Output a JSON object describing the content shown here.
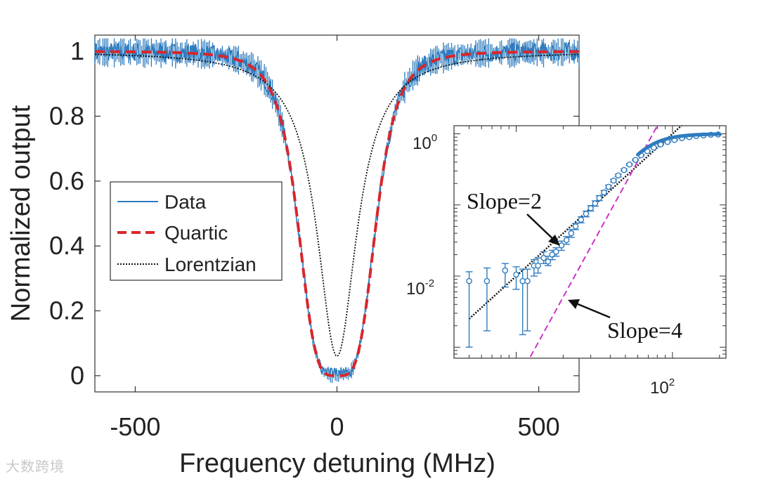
{
  "chart_data": [
    {
      "type": "line",
      "role": "main",
      "xlabel": "Frequency detuning (MHz)",
      "ylabel": "Normalized output",
      "xlim": [
        -600,
        600
      ],
      "ylim": [
        -0.05,
        1.05
      ],
      "xticks": [
        -500,
        0,
        500
      ],
      "xtick_labels": [
        "-500",
        "0",
        "500"
      ],
      "yticks": [
        0,
        0.2,
        0.4,
        0.6,
        0.8,
        1
      ],
      "ytick_labels": [
        "0",
        "0.2",
        "0.4",
        "0.6",
        "0.8",
        "1"
      ],
      "grid": false,
      "legend_position": "center-left",
      "series": [
        {
          "name": "Data",
          "style": "solid-noisy",
          "color": "#2f7cbf",
          "model": "quartic",
          "center_mhz": 0,
          "half_width_mhz": 100,
          "noise_amplitude": 0.03
        },
        {
          "name": "Quartic",
          "style": "dashed",
          "color": "#d9262b",
          "function": "x^4/(x^4 + w^4)",
          "w_mhz": 100
        },
        {
          "name": "Lorentzian",
          "style": "dotted",
          "color": "#111111",
          "function": "x^2/(x^2 + g^2)",
          "g_mhz": 60,
          "floor": 0.06
        }
      ]
    },
    {
      "type": "scatter",
      "role": "inset",
      "scale": "log-log",
      "xlim": [
        4,
        220
      ],
      "ylim": [
        0.0007,
        1.3
      ],
      "xtick_labels": [
        {
          "base": "10",
          "exp": "2"
        }
      ],
      "ytick_labels": [
        {
          "base": "10",
          "exp": "0"
        },
        {
          "base": "10",
          "exp": "-2"
        }
      ],
      "points": [
        {
          "x": 5.0,
          "y": 0.0085,
          "err_low": 0.0075,
          "err_high": 0.003
        },
        {
          "x": 6.5,
          "y": 0.0085,
          "err_low": 0.0068,
          "err_high": 0.0045
        },
        {
          "x": 8.5,
          "y": 0.012,
          "err_low": 0.005,
          "err_high": 0.003
        },
        {
          "x": 10.0,
          "y": 0.0105,
          "err_low": 0.004,
          "err_high": 0.003
        },
        {
          "x": 11.0,
          "y": 0.0085,
          "err_low": 0.007,
          "err_high": 0.004
        },
        {
          "x": 11.8,
          "y": 0.0085,
          "err_low": 0.0068,
          "err_high": 0.004
        },
        {
          "x": 13.0,
          "y": 0.014,
          "err_low": 0.004,
          "err_high": 0.003
        },
        {
          "x": 13.8,
          "y": 0.014,
          "err_low": 0.003,
          "err_high": 0.004
        },
        {
          "x": 15.0,
          "y": 0.018,
          "err_low": 0.003,
          "err_high": 0.004
        },
        {
          "x": 16.0,
          "y": 0.016,
          "err_low": 0.002,
          "err_high": 0.003
        },
        {
          "x": 17.0,
          "y": 0.02,
          "err_low": 0.003,
          "err_high": 0.003
        },
        {
          "x": 18.0,
          "y": 0.022,
          "err_low": 0.003,
          "err_high": 0.003
        },
        {
          "x": 19.5,
          "y": 0.027,
          "err_low": 0.004,
          "err_high": 0.004
        },
        {
          "x": 21.0,
          "y": 0.032,
          "err_low": 0.004,
          "err_high": 0.004
        },
        {
          "x": 22.5,
          "y": 0.04,
          "err_low": 0.005,
          "err_high": 0.005
        },
        {
          "x": 24.0,
          "y": 0.05,
          "err_low": 0.005,
          "err_high": 0.005
        },
        {
          "x": 26.0,
          "y": 0.062,
          "err_low": 0.006,
          "err_high": 0.006
        },
        {
          "x": 28.0,
          "y": 0.075,
          "err_low": 0.007,
          "err_high": 0.007
        },
        {
          "x": 30.0,
          "y": 0.09,
          "err_low": 0.008,
          "err_high": 0.008
        },
        {
          "x": 32.0,
          "y": 0.105,
          "err_low": 0.009,
          "err_high": 0.009
        },
        {
          "x": 34.0,
          "y": 0.125,
          "err_low": 0.01,
          "err_high": 0.01
        },
        {
          "x": 36.5,
          "y": 0.15,
          "err_low": 0.01,
          "err_high": 0.01
        },
        {
          "x": 39.0,
          "y": 0.18,
          "err_low": 0.01,
          "err_high": 0.01
        },
        {
          "x": 42.0,
          "y": 0.22,
          "err_low": 0.01,
          "err_high": 0.01
        },
        {
          "x": 45.0,
          "y": 0.26,
          "err_low": 0.01,
          "err_high": 0.01
        },
        {
          "x": 49.0,
          "y": 0.31,
          "err_low": 0.01,
          "err_high": 0.01
        },
        {
          "x": 53.0,
          "y": 0.37,
          "err_low": 0.01,
          "err_high": 0.01
        },
        {
          "x": 58.0,
          "y": 0.43,
          "err_low": 0.01,
          "err_high": 0.01
        },
        {
          "x": 63.0,
          "y": 0.5,
          "err_low": 0.01,
          "err_high": 0.01
        },
        {
          "x": 69.0,
          "y": 0.57,
          "err_low": 0.01,
          "err_high": 0.01
        },
        {
          "x": 76.0,
          "y": 0.64,
          "err_low": 0.01,
          "err_high": 0.01
        },
        {
          "x": 84.0,
          "y": 0.71,
          "err_low": 0.01,
          "err_high": 0.01
        },
        {
          "x": 93.0,
          "y": 0.77,
          "err_low": 0.01,
          "err_high": 0.01
        },
        {
          "x": 103.0,
          "y": 0.82,
          "err_low": 0.01,
          "err_high": 0.01
        },
        {
          "x": 115.0,
          "y": 0.87,
          "err_low": 0.01,
          "err_high": 0.01
        },
        {
          "x": 128.0,
          "y": 0.9,
          "err_low": 0.01,
          "err_high": 0.01
        },
        {
          "x": 142.0,
          "y": 0.93,
          "err_low": 0.01,
          "err_high": 0.01
        },
        {
          "x": 158.0,
          "y": 0.95,
          "err_low": 0.01,
          "err_high": 0.01
        },
        {
          "x": 176.0,
          "y": 0.97,
          "err_low": 0.01,
          "err_high": 0.01
        },
        {
          "x": 196.0,
          "y": 0.98,
          "err_low": 0.01,
          "err_high": 0.01
        }
      ],
      "point_color": "#2f7cbf",
      "fits": [
        {
          "name": "Slope=2",
          "slope": 2,
          "anchor_x": 100,
          "anchor_y": 1.0,
          "x_range": [
            5,
            120
          ],
          "color": "#111111",
          "style": "dotted"
        },
        {
          "name": "Slope=4",
          "slope": 4,
          "anchor_x": 63,
          "anchor_y": 0.5,
          "x_range": [
            10,
            100
          ],
          "color": "#cc33cc",
          "style": "dashed"
        }
      ],
      "annotations": [
        "Slope=2",
        "Slope=4"
      ]
    }
  ],
  "watermark": "大数跨境"
}
